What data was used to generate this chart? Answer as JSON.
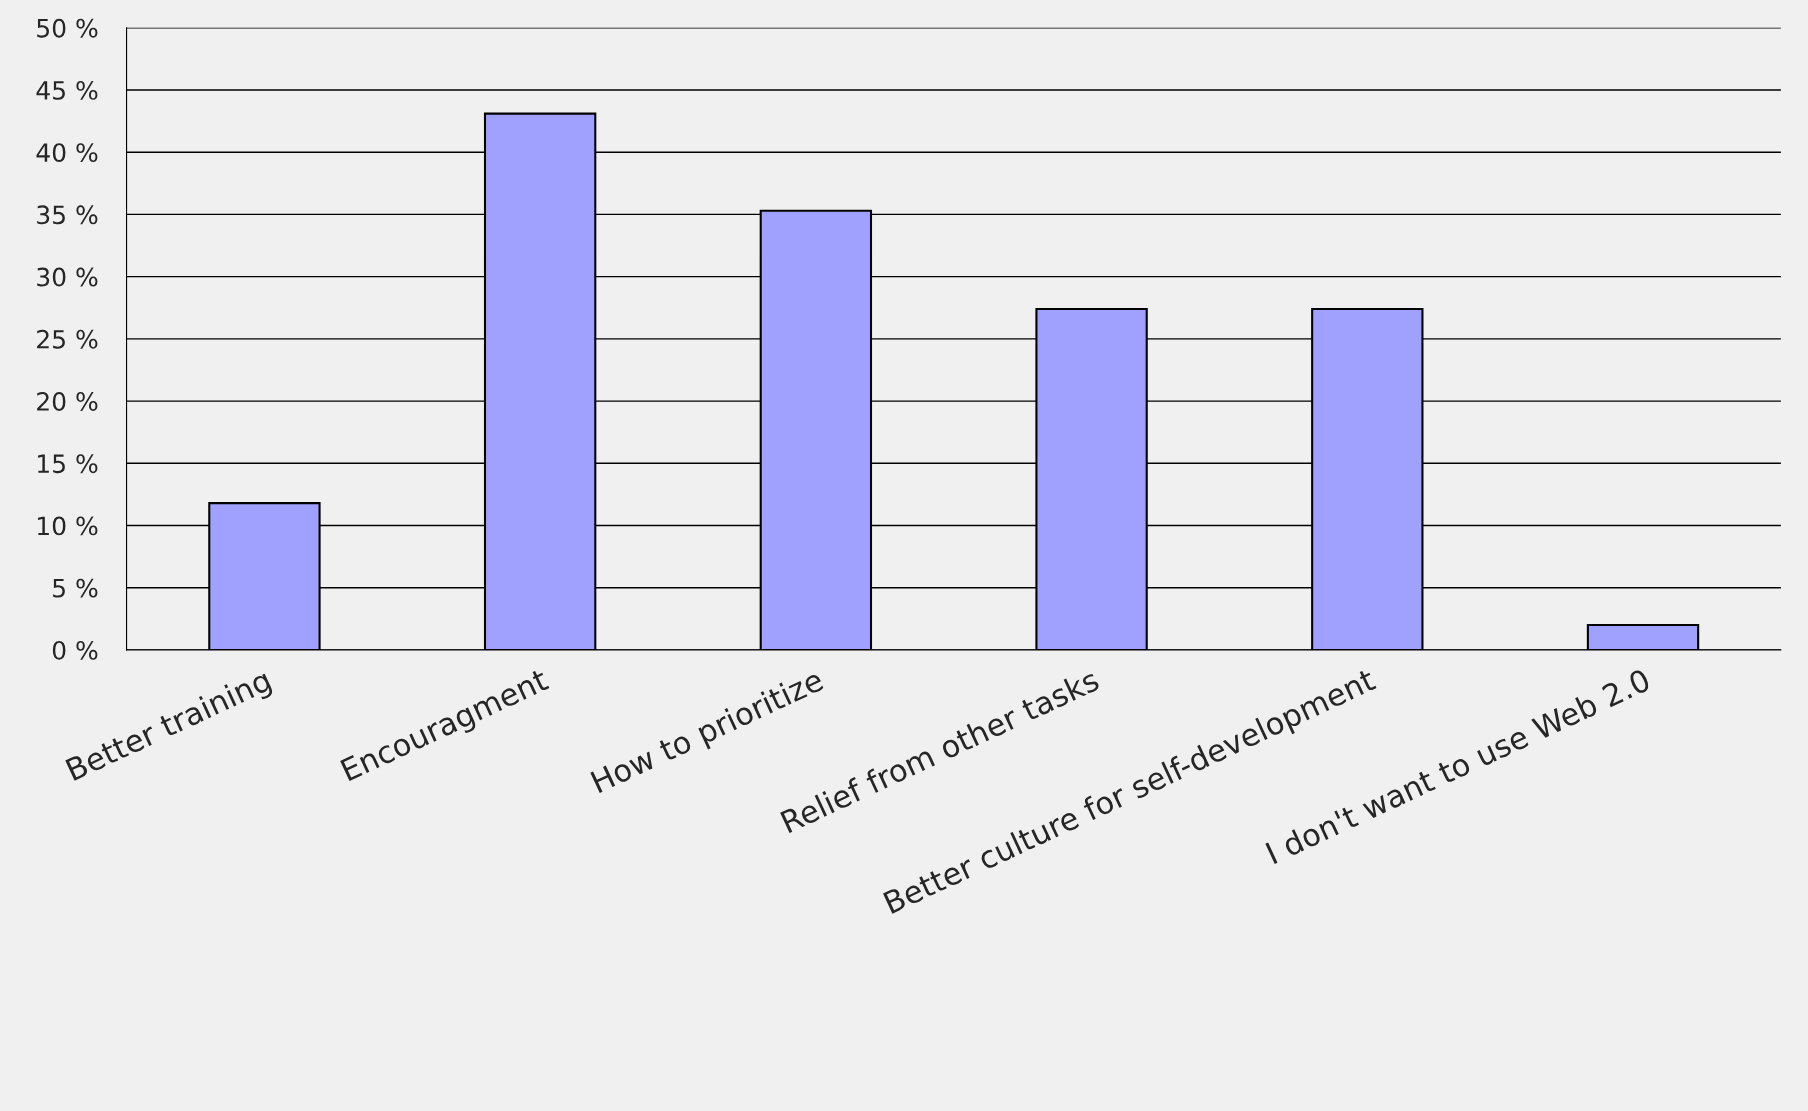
{
  "chart_data": {
    "type": "bar",
    "categories": [
      "Better training",
      "Encouragment",
      "How to prioritize",
      "Relief from other tasks",
      "Better culture for self-development",
      "I don't want to use Web 2.0"
    ],
    "values": [
      11.8,
      43.1,
      35.3,
      27.4,
      27.4,
      2.0
    ],
    "color": "#a0a0ff",
    "ylim": [
      0,
      50
    ],
    "yticks": [
      {
        "value": 0,
        "label": "0 %"
      },
      {
        "value": 5,
        "label": "5 %"
      },
      {
        "value": 10,
        "label": "10 %"
      },
      {
        "value": 15,
        "label": "15 %"
      },
      {
        "value": 20,
        "label": "20 %"
      },
      {
        "value": 25,
        "label": "25 %"
      },
      {
        "value": 30,
        "label": "30 %"
      },
      {
        "value": 35,
        "label": "35 %"
      },
      {
        "value": 40,
        "label": "40 %"
      },
      {
        "value": 45,
        "label": "45 %"
      },
      {
        "value": 50,
        "label": "50 %"
      }
    ],
    "grid": "y"
  }
}
